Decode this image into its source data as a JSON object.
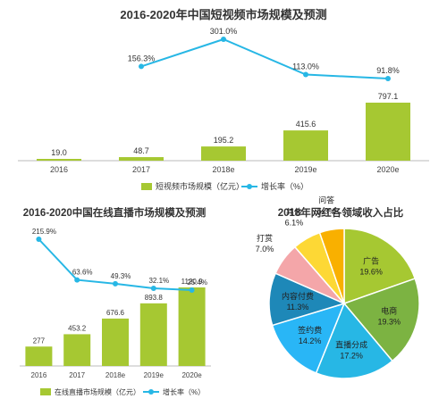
{
  "chart_data": [
    {
      "type": "bar+line",
      "title": "2016-2020年中国短视频市场规模及预测",
      "categories": [
        "2016",
        "2017",
        "2018e",
        "2019e",
        "2020e"
      ],
      "series": [
        {
          "name": "短视频市场规模（亿元）",
          "type": "bar",
          "values": [
            19.0,
            48.7,
            195.2,
            415.6,
            797.1
          ],
          "labels": [
            "19.0",
            "48.7",
            "195.2",
            "415.6",
            "797.1"
          ]
        },
        {
          "name": "增长率（%）",
          "type": "line",
          "values": [
            null,
            156.3,
            301.0,
            113.0,
            91.8
          ],
          "labels": [
            "",
            "156.3%",
            "301.0%",
            "113.0%",
            "91.8%"
          ]
        }
      ],
      "legend": "bottom",
      "colors": {
        "bar": "#a6c832",
        "line": "#27b7e5"
      }
    },
    {
      "type": "bar+line",
      "title": "2016-2020中国在线直播市场规模及预测",
      "categories": [
        "2016",
        "2017",
        "2018e",
        "2019e",
        "2020e"
      ],
      "series": [
        {
          "name": "在线直播市场规模（亿元）",
          "type": "bar",
          "values": [
            277,
            453.2,
            676.6,
            893.8,
            1120.9
          ],
          "labels": [
            "277",
            "453.2",
            "676.6",
            "893.8",
            "1120.9"
          ]
        },
        {
          "name": "增长率（%）",
          "type": "line",
          "values": [
            215.9,
            63.6,
            49.3,
            32.1,
            25.4
          ],
          "labels": [
            "215.9%",
            "63.6%",
            "49.3%",
            "32.1%",
            "25.4%"
          ]
        }
      ],
      "legend": "bottom",
      "colors": {
        "bar": "#a6c832",
        "line": "#27b7e5"
      }
    },
    {
      "type": "pie",
      "title": "2018年网红各领域收入占比",
      "slices": [
        {
          "label": "广告",
          "value": 19.6,
          "value_label": "19.6%",
          "color": "#a6c832"
        },
        {
          "label": "电商",
          "value": 19.3,
          "value_label": "19.3%",
          "color": "#7cb342"
        },
        {
          "label": "直播分成",
          "value": 17.2,
          "value_label": "17.2%",
          "color": "#27b7e5"
        },
        {
          "label": "签约费",
          "value": 14.2,
          "value_label": "14.2%",
          "color": "#29b6f6"
        },
        {
          "label": "内容付费",
          "value": 11.3,
          "value_label": "11.3%",
          "color": "#1e88b8"
        },
        {
          "label": "打赏",
          "value": 7.0,
          "value_label": "7.0%",
          "color": "#f4a6a9"
        },
        {
          "label": "其他",
          "value": 6.1,
          "value_label": "6.1%",
          "color": "#fdd835"
        },
        {
          "label": "问答",
          "value": 5.3,
          "value_label": "5.3%",
          "color": "#f9b000"
        }
      ]
    }
  ]
}
